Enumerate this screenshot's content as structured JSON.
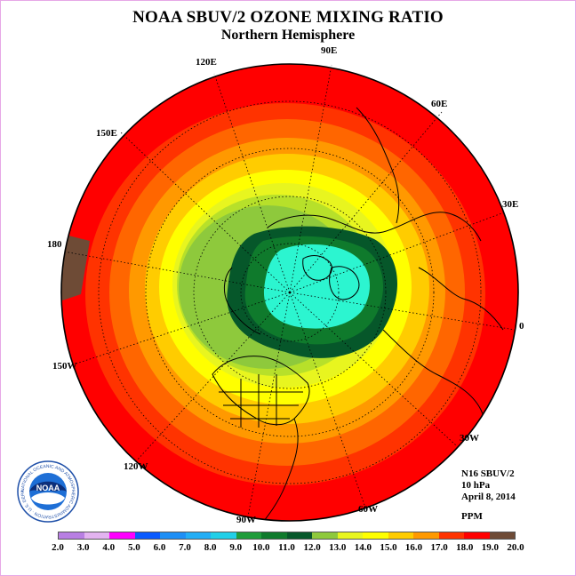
{
  "title": "NOAA SBUV/2 OZONE MIXING RATIO",
  "subtitle": "Northern Hemisphere",
  "longitude_labels": [
    "90E",
    "60E",
    "30E",
    "0",
    "30W",
    "60W",
    "90W",
    "120W",
    "150W",
    "180",
    "150E",
    "120E"
  ],
  "info": {
    "satellite": "N16 SBUV/2",
    "level": "10 hPa",
    "date": "April 8, 2014",
    "units": "PPM"
  },
  "logo": {
    "text": "NOAA",
    "ring_text": "NATIONAL OCEANIC AND ATMOSPHERIC ADMINISTRATION · U.S. DEPARTMENT OF COMMERCE"
  },
  "colorbar": {
    "ticks": [
      "2.0",
      "3.0",
      "4.0",
      "5.0",
      "6.0",
      "7.0",
      "8.0",
      "9.0",
      "10.0",
      "11.0",
      "12.0",
      "13.0",
      "14.0",
      "15.0",
      "16.0",
      "17.0",
      "18.0",
      "19.0",
      "20.0"
    ],
    "colors": [
      "#b87fe3",
      "#e3b3f0",
      "#ff00ff",
      "#1f1fe8",
      "#0b5bff",
      "#1e8ff5",
      "#23aef5",
      "#21cfe8",
      "#2cf5d0",
      "#1f9c3a",
      "#0f7a2c",
      "#06572a",
      "#8ec93c",
      "#b7e02a",
      "#e8f51f",
      "#ffff00",
      "#ffcc00",
      "#ff9900",
      "#ff6600",
      "#ff3300",
      "#ff0000",
      "#6e4b36"
    ]
  }
}
